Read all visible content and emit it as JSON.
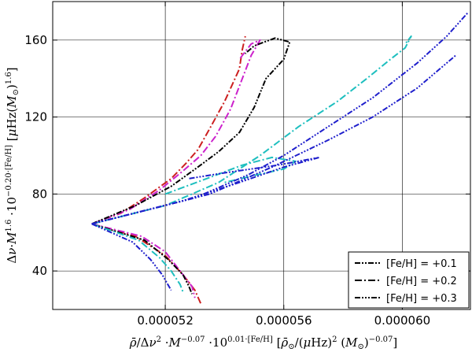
{
  "chart_data": {
    "type": "line",
    "xlabel": "ρ̄/Δν² ·M^−0.07 ·10^0.01·[Fe/H] [ρ̄⊙/(μHz)² (M⊙)^−0.07]",
    "ylabel": "Δν·M^1.6 ·10^−0.20·[Fe/H] [μHz(M⊙)^1.6]",
    "xlim": [
      4.82e-05,
      6.23e-05
    ],
    "ylim": [
      20,
      180
    ],
    "x_ticks": [
      "0.000052",
      "0.000056",
      "0.000060"
    ],
    "y_ticks": [
      "40",
      "80",
      "120",
      "160"
    ],
    "grid": true,
    "legend_position": "bottom-right",
    "legend": [
      {
        "label": "[Fe/H] = +0.1",
        "dash": "dash-dot-dot"
      },
      {
        "label": "[Fe/H] = +0.2",
        "dash": "dash-dot"
      },
      {
        "label": "[Fe/H] = +0.3",
        "dash": "dash-dot-dot-dot"
      }
    ],
    "convergence_point": {
      "x": 4.952e-05,
      "y": 64.5
    },
    "series": [
      {
        "color": "#cc1f1f",
        "dash": "dashdot",
        "x": [
          4.952e-05,
          5.05e-05,
          5.13e-05,
          5.22e-05,
          5.27e-05,
          5.31e-05,
          5.35e-05,
          5.4e-05,
          5.45e-05,
          5.46e-05,
          5.47e-05
        ],
        "y": [
          64.5,
          70,
          78,
          88,
          96,
          103,
          114,
          128,
          145,
          155,
          162
        ]
      },
      {
        "color": "#cc1f1f",
        "dash": "dashdot",
        "x": [
          4.952e-05,
          5.1e-05,
          5.2e-05,
          5.26e-05,
          5.3e-05,
          5.32e-05
        ],
        "y": [
          64.5,
          58,
          48,
          38,
          30,
          23
        ]
      },
      {
        "color": "#cc22cc",
        "dash": "dashdot",
        "x": [
          4.952e-05,
          5.08e-05,
          5.18e-05,
          5.26e-05,
          5.32e-05,
          5.37e-05,
          5.42e-05,
          5.46e-05,
          5.49e-05,
          5.52e-05,
          5.49e-05,
          5.45e-05
        ],
        "y": [
          64.5,
          72,
          82,
          92,
          100,
          110,
          124,
          140,
          152,
          160,
          158,
          150
        ]
      },
      {
        "color": "#cc22cc",
        "dash": "dashdot",
        "x": [
          4.952e-05,
          5.12e-05,
          5.2e-05,
          5.25e-05,
          5.29e-05,
          5.3e-05
        ],
        "y": [
          64.5,
          58,
          50,
          40,
          32,
          26
        ]
      },
      {
        "color": "#000000",
        "dash": "dashdotdot",
        "x": [
          4.952e-05,
          5.1e-05,
          5.22e-05,
          5.31e-05,
          5.38e-05,
          5.45e-05,
          5.5e-05,
          5.54e-05,
          5.6e-05,
          5.62e-05,
          5.57e-05,
          5.5e-05,
          5.47e-05
        ],
        "y": [
          64.5,
          74,
          84,
          94,
          102,
          112,
          125,
          140,
          150,
          159,
          161,
          157,
          153
        ]
      },
      {
        "color": "#000000",
        "dash": "dashdotdot",
        "x": [
          4.952e-05,
          5.13e-05,
          5.21e-05,
          5.26e-05,
          5.28e-05,
          5.29e-05
        ],
        "y": [
          64.5,
          56,
          46,
          38,
          32,
          28
        ]
      },
      {
        "color": "#1ebfbf",
        "dash": "dashdot",
        "x": [
          4.952e-05,
          5.2e-05,
          5.38e-05,
          5.52e-05,
          5.65e-05,
          5.78e-05,
          5.88e-05,
          5.96e-05,
          6.01e-05,
          6.03e-05,
          6.01e-05
        ],
        "y": [
          64.5,
          74,
          86,
          100,
          115,
          128,
          140,
          150,
          156,
          162,
          158
        ]
      },
      {
        "color": "#1ebfbf",
        "dash": "dashdot",
        "x": [
          4.952e-05,
          5.11e-05,
          5.18e-05,
          5.22e-05,
          5.25e-05,
          5.26e-05
        ],
        "y": [
          64.5,
          56,
          47,
          40,
          33,
          29
        ]
      },
      {
        "color": "#1ebfbf",
        "dash": "dashdot",
        "x": [
          5.2e-05,
          5.34e-05,
          5.46e-05,
          5.56e-05,
          5.64e-05,
          5.6e-05,
          5.51e-05,
          5.4e-05
        ],
        "y": [
          80,
          88,
          95,
          99,
          97,
          93,
          90,
          86
        ]
      },
      {
        "color": "#1f1fcc",
        "dash": "dashdotdotdot",
        "x": [
          4.952e-05,
          5.3e-05,
          5.48e-05,
          5.6e-05,
          5.75e-05,
          5.9e-05,
          6.05e-05,
          6.15e-05,
          6.22e-05
        ],
        "y": [
          64.5,
          78,
          90,
          100,
          115,
          130,
          148,
          162,
          174
        ]
      },
      {
        "color": "#1f1fcc",
        "dash": "dashdotdotdot",
        "x": [
          4.952e-05,
          5.25e-05,
          5.45e-05,
          5.6e-05,
          5.72e-05,
          5.58e-05,
          5.4e-05,
          5.28e-05
        ],
        "y": [
          64.5,
          76,
          86,
          94,
          99,
          95,
          91,
          88
        ]
      },
      {
        "color": "#1f1fcc",
        "dash": "dashdotdotdot",
        "x": [
          4.952e-05,
          5.35e-05,
          5.56e-05,
          5.75e-05,
          5.9e-05,
          6.05e-05,
          6.18e-05
        ],
        "y": [
          64.5,
          80,
          94,
          108,
          120,
          135,
          152
        ]
      },
      {
        "color": "#1f1fcc",
        "dash": "dashdotdotdot",
        "x": [
          4.952e-05,
          5.09e-05,
          5.15e-05,
          5.19e-05,
          5.22e-05
        ],
        "y": [
          64.5,
          55,
          46,
          38,
          30
        ]
      }
    ]
  }
}
